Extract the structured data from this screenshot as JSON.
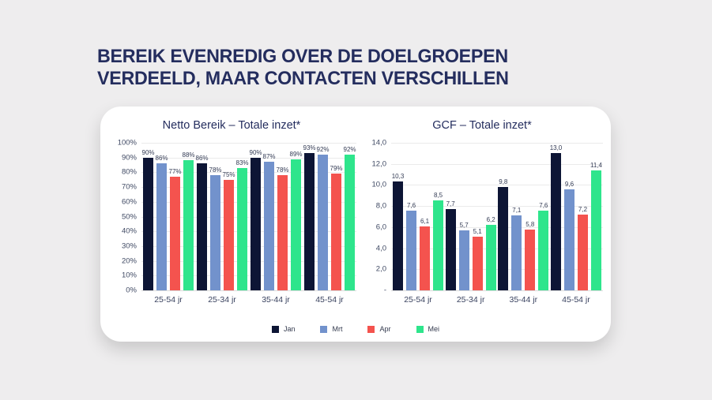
{
  "slide": {
    "title_line1": "BEREIK EVENREDIG OVER DE DOELGROEPEN",
    "title_line2": "VERDEELD, MAAR CONTACTEN VERSCHILLEN",
    "background_color": "#eeedee",
    "card_color": "#ffffff",
    "title_color": "#242d5e"
  },
  "legend": [
    {
      "name": "Jan",
      "color": "#0d1535"
    },
    {
      "name": "Mrt",
      "color": "#7292cc"
    },
    {
      "name": "Apr",
      "color": "#f4534e"
    },
    {
      "name": "Mei",
      "color": "#2ee58c"
    }
  ],
  "chart_data": [
    {
      "type": "bar",
      "title": "Netto Bereik – Totale inzet*",
      "categories": [
        "25-54 jr",
        "25-34 jr",
        "35-44 jr",
        "45-54 jr"
      ],
      "series": [
        {
          "name": "Jan",
          "values": [
            90,
            86,
            90,
            93
          ]
        },
        {
          "name": "Mrt",
          "values": [
            86,
            78,
            87,
            92
          ]
        },
        {
          "name": "Apr",
          "values": [
            77,
            75,
            78,
            79
          ]
        },
        {
          "name": "Mei",
          "values": [
            88,
            83,
            89,
            92
          ]
        }
      ],
      "label_format": "percent",
      "ylim": [
        0,
        100
      ],
      "yticks": [
        "100%",
        "90%",
        "80%",
        "70%",
        "60%",
        "50%",
        "40%",
        "30%",
        "20%",
        "10%",
        "0%"
      ],
      "grid": true,
      "legend_position": "bottom"
    },
    {
      "type": "bar",
      "title": "GCF – Totale inzet*",
      "categories": [
        "25-54 jr",
        "25-34 jr",
        "35-44 jr",
        "45-54 jr"
      ],
      "series": [
        {
          "name": "Jan",
          "values": [
            10.3,
            7.7,
            9.8,
            13.0
          ]
        },
        {
          "name": "Mrt",
          "values": [
            7.6,
            5.7,
            7.1,
            9.6
          ]
        },
        {
          "name": "Apr",
          "values": [
            6.1,
            5.1,
            5.8,
            7.2
          ]
        },
        {
          "name": "Mei",
          "values": [
            8.5,
            6.2,
            7.6,
            11.4
          ]
        }
      ],
      "label_format": "decimal-comma",
      "ylim": [
        0,
        14
      ],
      "yticks": [
        "14,0",
        "12,0",
        "10,0",
        "8,0",
        "6,0",
        "4,0",
        "2,0",
        "-"
      ],
      "grid": true,
      "legend_position": "bottom"
    }
  ]
}
